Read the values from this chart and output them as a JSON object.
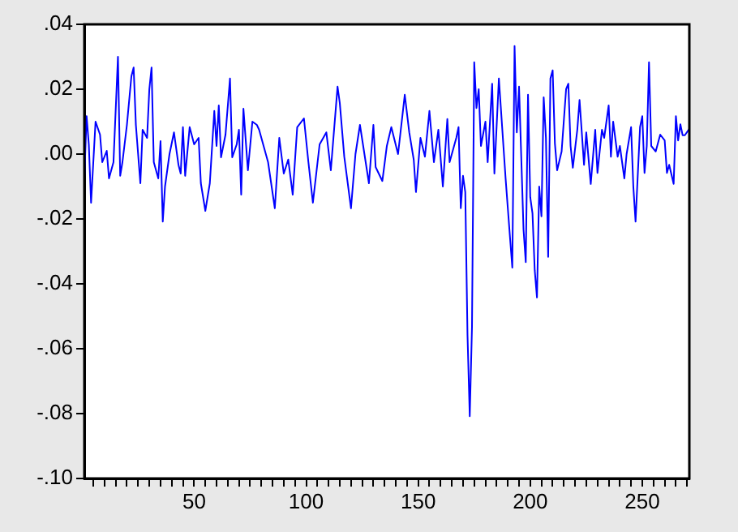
{
  "chart_data": {
    "type": "line",
    "grid": false,
    "legend": false,
    "xlim": [
      1,
      271
    ],
    "xticks": [
      {
        "value": 5,
        "label": null
      },
      {
        "value": 10,
        "label": null
      },
      {
        "value": 15,
        "label": null
      },
      {
        "value": 20,
        "label": null
      },
      {
        "value": 25,
        "label": null
      },
      {
        "value": 30,
        "label": null
      },
      {
        "value": 35,
        "label": null
      },
      {
        "value": 40,
        "label": null
      },
      {
        "value": 45,
        "label": null
      },
      50,
      {
        "value": 55,
        "label": null
      },
      {
        "value": 60,
        "label": null
      },
      {
        "value": 65,
        "label": null
      },
      {
        "value": 70,
        "label": null
      },
      {
        "value": 75,
        "label": null
      },
      {
        "value": 80,
        "label": null
      },
      {
        "value": 85,
        "label": null
      },
      {
        "value": 90,
        "label": null
      },
      {
        "value": 95,
        "label": null
      },
      100,
      {
        "value": 105,
        "label": null
      },
      {
        "value": 110,
        "label": null
      },
      {
        "value": 115,
        "label": null
      },
      {
        "value": 120,
        "label": null
      },
      {
        "value": 125,
        "label": null
      },
      {
        "value": 130,
        "label": null
      },
      {
        "value": 135,
        "label": null
      },
      {
        "value": 140,
        "label": null
      },
      {
        "value": 145,
        "label": null
      },
      150,
      {
        "value": 155,
        "label": null
      },
      {
        "value": 160,
        "label": null
      },
      {
        "value": 165,
        "label": null
      },
      {
        "value": 170,
        "label": null
      },
      {
        "value": 175,
        "label": null
      },
      {
        "value": 180,
        "label": null
      },
      {
        "value": 185,
        "label": null
      },
      {
        "value": 190,
        "label": null
      },
      {
        "value": 195,
        "label": null
      },
      200,
      {
        "value": 205,
        "label": null
      },
      {
        "value": 210,
        "label": null
      },
      {
        "value": 215,
        "label": null
      },
      {
        "value": 220,
        "label": null
      },
      {
        "value": 225,
        "label": null
      },
      {
        "value": 230,
        "label": null
      },
      {
        "value": 235,
        "label": null
      },
      {
        "value": 240,
        "label": null
      },
      {
        "value": 245,
        "label": null
      },
      250,
      {
        "value": 255,
        "label": null
      },
      {
        "value": 260,
        "label": null
      },
      {
        "value": 265,
        "label": null
      },
      {
        "value": 270,
        "label": null
      }
    ],
    "ylim": [
      -0.1,
      0.04
    ],
    "yticks": [
      {
        "value": 0.04,
        "label": ".04"
      },
      {
        "value": 0.02,
        "label": ".02"
      },
      {
        "value": 0,
        "label": ".00"
      },
      {
        "value": -0.02,
        "label": "-.02"
      },
      {
        "value": -0.04,
        "label": "-.04"
      },
      {
        "value": -0.06,
        "label": "-.06"
      },
      {
        "value": -0.08,
        "label": "-.08"
      },
      {
        "value": -0.1,
        "label": "-.10"
      }
    ],
    "series": [
      {
        "color": "#0000ff",
        "x": [
          1,
          2,
          3,
          4,
          6,
          8,
          9,
          11,
          12,
          14,
          16,
          17,
          18,
          20,
          22,
          23,
          24,
          26,
          27,
          29,
          30,
          31,
          32,
          34,
          35,
          36,
          37,
          39,
          41,
          43,
          44,
          45,
          46,
          48,
          50,
          52,
          53,
          55,
          57,
          59,
          60,
          61,
          62,
          64,
          66,
          67,
          69,
          70,
          71,
          72,
          74,
          76,
          78,
          79,
          83,
          86,
          88,
          90,
          92,
          94,
          96,
          99,
          101,
          103,
          106,
          109,
          111,
          114,
          115,
          117,
          120,
          122,
          124,
          128,
          130,
          131,
          134,
          136,
          138,
          141,
          144,
          146,
          148,
          149,
          151,
          153,
          155,
          157,
          159,
          161,
          163,
          164,
          167,
          168,
          169,
          170,
          171,
          172,
          173,
          174,
          175,
          176,
          177,
          178,
          180,
          181,
          183,
          184,
          186,
          189,
          191,
          192,
          193,
          194,
          195,
          197,
          198,
          199,
          200,
          201,
          202,
          203,
          204,
          205,
          206,
          207,
          208,
          209,
          210,
          211,
          212,
          214,
          216,
          217,
          218,
          219,
          221,
          222,
          224,
          225,
          227,
          229,
          230,
          232,
          233,
          235,
          236,
          237,
          239,
          240,
          242,
          243,
          245,
          246,
          247,
          249,
          250,
          251,
          252,
          253,
          254,
          256,
          258,
          260,
          261,
          262,
          264,
          265,
          266,
          267,
          268,
          269,
          271
        ],
        "values": [
          -0.0075,
          0.0117,
          0.003,
          -0.015,
          0.01,
          0.006,
          -0.0025,
          0.001,
          -0.0075,
          -0.0025,
          0.03,
          -0.0067,
          -0.0025,
          0.009,
          0.024,
          0.0267,
          0.009,
          -0.009,
          0.0075,
          0.005,
          0.02,
          0.0267,
          -0.0025,
          -0.0075,
          0.004,
          -0.0208,
          -0.01,
          0,
          0.0067,
          -0.0033,
          -0.006,
          0.0083,
          -0.0067,
          0.0083,
          0.003,
          0.005,
          -0.009,
          -0.0175,
          -0.009,
          0.0133,
          0.0025,
          0.015,
          -0.001,
          0.006,
          0.0233,
          -0.001,
          0.003,
          0.0075,
          -0.0125,
          0.014,
          -0.005,
          0.01,
          0.009,
          0.0075,
          -0.0025,
          -0.0167,
          0.005,
          -0.006,
          -0.0017,
          -0.0125,
          0.0083,
          0.011,
          -0.0025,
          -0.015,
          0.003,
          0.0067,
          -0.005,
          0.0208,
          0.0158,
          -0.0008,
          -0.0167,
          0,
          0.009,
          -0.009,
          0.009,
          -0.004,
          -0.0083,
          0.0025,
          0.0083,
          0,
          0.0183,
          0.0067,
          -0.0017,
          -0.0117,
          0.005,
          -0.0008,
          0.0133,
          -0.0025,
          0.0075,
          -0.01,
          0.0108,
          -0.0025,
          0.005,
          0.0083,
          -0.0167,
          -0.0067,
          -0.0117,
          -0.0558,
          -0.0808,
          -0.0533,
          0.0283,
          0.0142,
          0.02,
          0.0025,
          0.01,
          -0.0025,
          0.0217,
          -0.006,
          0.0233,
          -0.0075,
          -0.026,
          -0.035,
          0.0333,
          0.0067,
          0.0208,
          -0.0233,
          -0.0333,
          0.0183,
          -0.0133,
          -0.0183,
          -0.0358,
          -0.0442,
          -0.01,
          -0.0192,
          0.0175,
          0.005,
          -0.0317,
          0.0233,
          0.0258,
          0.0033,
          -0.005,
          0.0008,
          0.02,
          0.0217,
          0.0025,
          -0.0042,
          0.0075,
          0.0167,
          -0.0033,
          0.0067,
          -0.0092,
          0.0075,
          -0.0058,
          0.0075,
          0.005,
          0.015,
          -0.0008,
          0.01,
          -0.0008,
          0.0025,
          -0.0075,
          0,
          0.0083,
          -0.01,
          -0.0208,
          0.0083,
          0.0117,
          -0.0058,
          0.0025,
          0.0283,
          0.0025,
          0.0008,
          0.006,
          0.0042,
          -0.0058,
          -0.0033,
          -0.0092,
          0.0117,
          0.0042,
          0.0092,
          0.0058,
          0.0058,
          0.0078
        ]
      }
    ]
  }
}
